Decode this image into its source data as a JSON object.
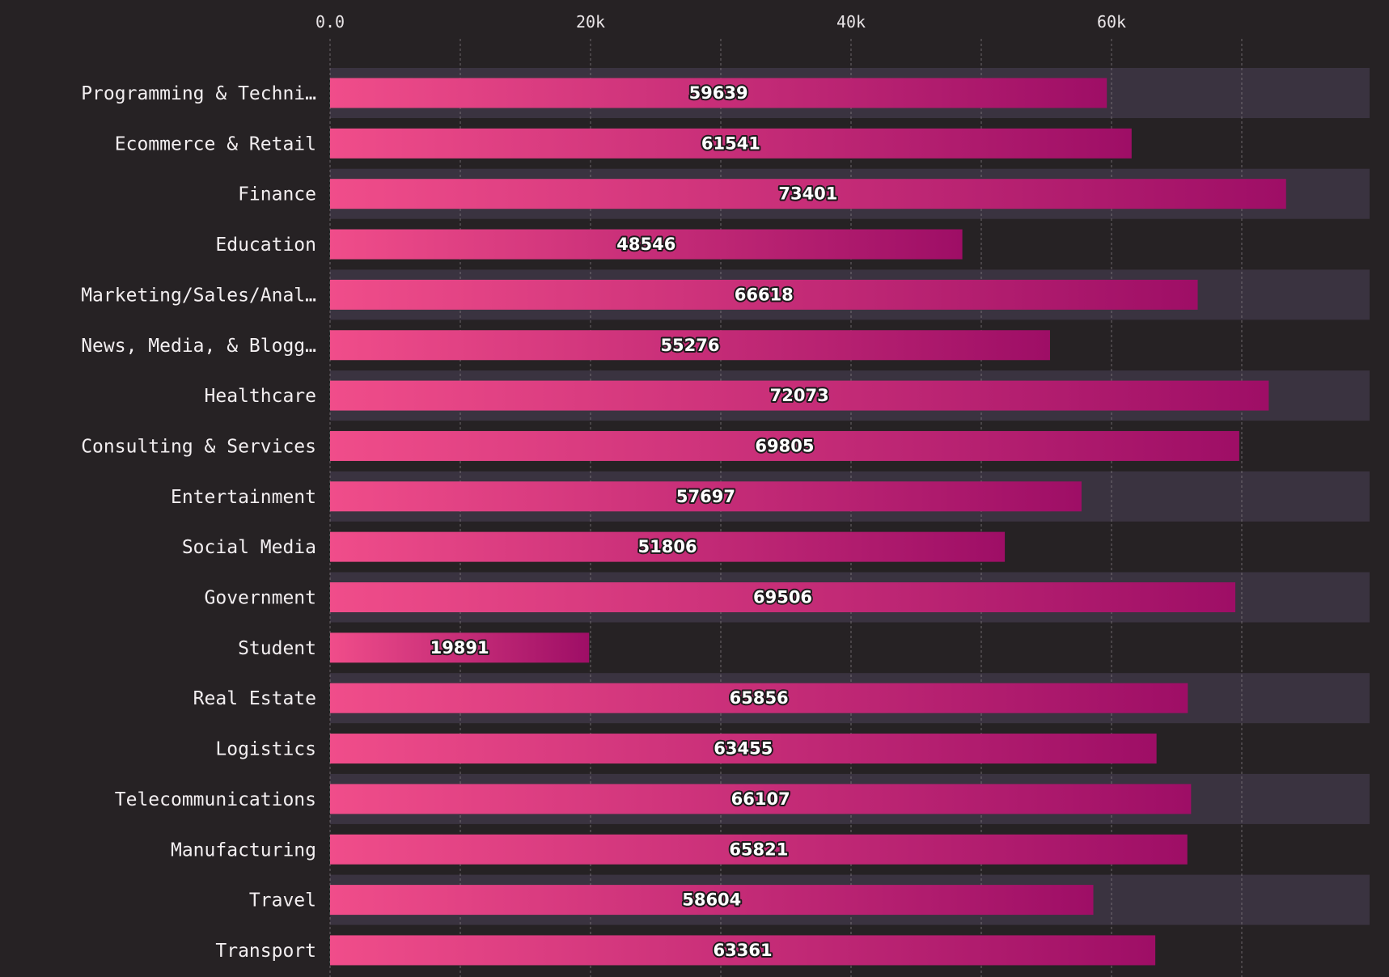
{
  "chart_data": {
    "type": "bar",
    "orientation": "horizontal",
    "title": "",
    "xlabel": "",
    "ylabel": "",
    "xlim": [
      0,
      80000
    ],
    "x_ticks": [
      {
        "value": 0,
        "label": "0.0"
      },
      {
        "value": 20000,
        "label": "20k"
      },
      {
        "value": 40000,
        "label": "40k"
      },
      {
        "value": 60000,
        "label": "60k"
      }
    ],
    "grid_values": [
      0,
      10000,
      20000,
      30000,
      40000,
      50000,
      60000,
      70000,
      80000
    ],
    "grid": true,
    "axis_position": "top",
    "categories": [
      "Programming & Techni…",
      "Ecommerce & Retail",
      "Finance",
      "Education",
      "Marketing/Sales/Anal…",
      "News, Media, & Blogg…",
      "Healthcare",
      "Consulting & Services",
      "Entertainment",
      "Social Media",
      "Government",
      "Student",
      "Real Estate",
      "Logistics",
      "Telecommunications",
      "Manufacturing",
      "Travel",
      "Transport"
    ],
    "values": [
      59639,
      61541,
      73401,
      48546,
      66618,
      55276,
      72073,
      69805,
      57697,
      51806,
      69506,
      19891,
      65856,
      63455,
      66107,
      65821,
      58604,
      63361
    ],
    "value_labels": [
      "59639",
      "61541",
      "73401",
      "48546",
      "66618",
      "55276",
      "72073",
      "69805",
      "57697",
      "51806",
      "69506",
      "19891",
      "65856",
      "63455",
      "66107",
      "65821",
      "58604",
      "63361"
    ],
    "colors": {
      "background": "#262224",
      "band": "#3a3340",
      "bar_start": "#f04d8a",
      "bar_end": "#9e0e66"
    }
  }
}
